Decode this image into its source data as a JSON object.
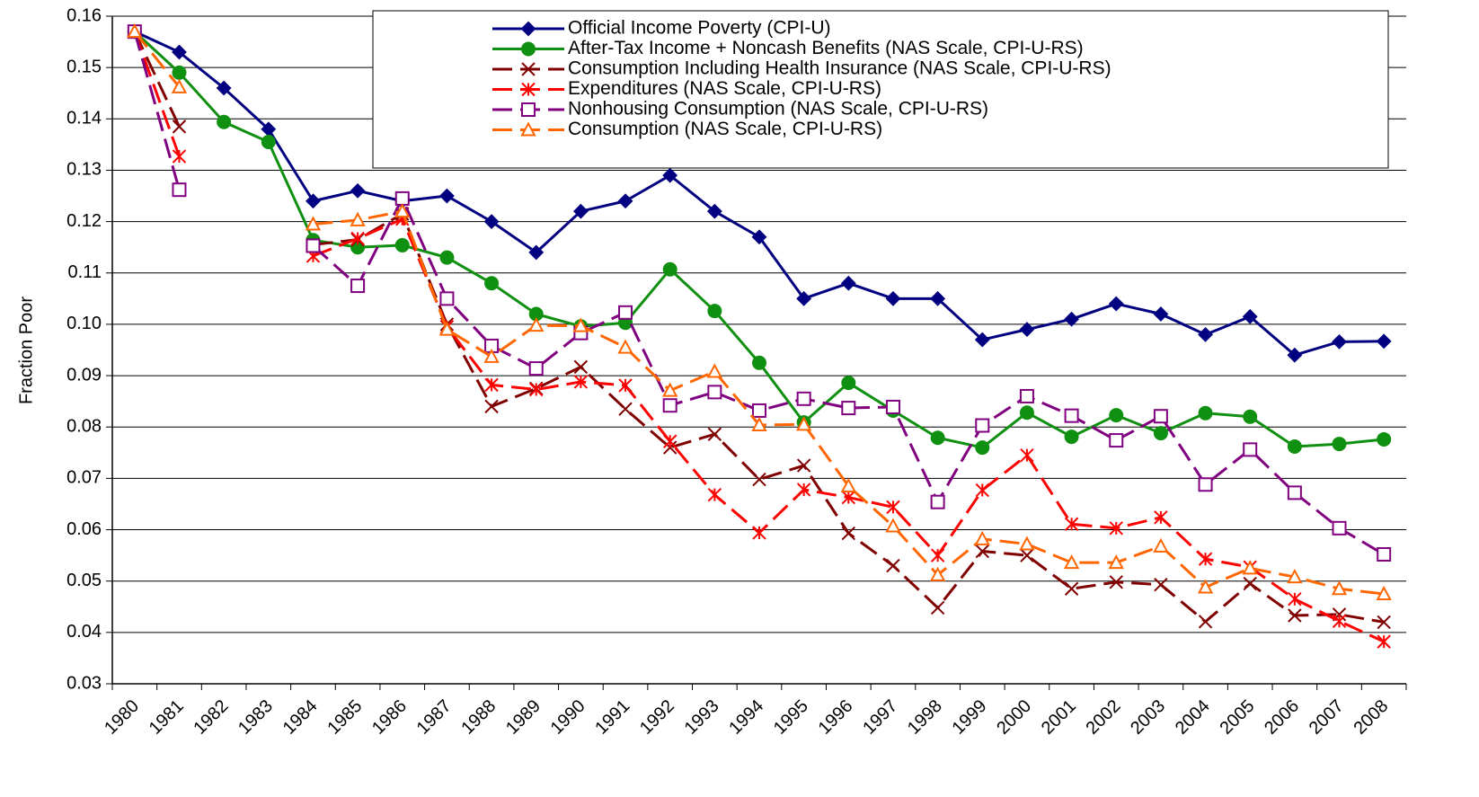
{
  "chart_data": {
    "type": "line",
    "y_label": "Fraction Poor",
    "categories": [
      "1980",
      "1981",
      "1982",
      "1983",
      "1984",
      "1985",
      "1986",
      "1987",
      "1988",
      "1989",
      "1990",
      "1991",
      "1992",
      "1993",
      "1994",
      "1995",
      "1996",
      "1997",
      "1998",
      "1999",
      "2000",
      "2001",
      "2002",
      "2003",
      "2004",
      "2005",
      "2006",
      "2007",
      "2008"
    ],
    "ylim": [
      0.03,
      0.16
    ],
    "yticks": [
      0.03,
      0.04,
      0.05,
      0.06,
      0.07,
      0.08,
      0.09,
      {
        "value": 0.1,
        "label": "0.10"
      },
      0.11,
      0.12,
      0.13,
      0.14,
      0.15,
      0.16
    ],
    "grid": true,
    "legend": "top-right",
    "series": [
      {
        "name": "Official Income Poverty (CPI-U)",
        "color": "#000080",
        "marker": "diamond",
        "dashed": false,
        "values": [
          0.157,
          0.153,
          0.146,
          0.138,
          0.124,
          0.126,
          0.124,
          0.125,
          0.12,
          0.114,
          0.122,
          0.124,
          0.129,
          0.122,
          0.117,
          0.105,
          0.108,
          0.105,
          0.105,
          0.097,
          0.099,
          0.101,
          0.104,
          0.102,
          0.098,
          0.1015,
          0.094,
          0.0966,
          0.0967
        ]
      },
      {
        "name": "After-Tax Income + Noncash Benefits (NAS Scale, CPI-U-RS)",
        "color": "#109010",
        "marker": "circle",
        "dashed": false,
        "values": [
          0.157,
          0.149,
          0.1394,
          0.1355,
          0.1164,
          0.115,
          0.1154,
          0.113,
          0.108,
          0.102,
          0.0996,
          0.1003,
          0.1107,
          0.1026,
          0.0925,
          0.0809,
          0.0886,
          0.0832,
          0.0779,
          0.076,
          0.0828,
          0.0781,
          0.0823,
          0.0788,
          0.0827,
          0.082,
          0.0762,
          0.0767,
          0.0776
        ]
      },
      {
        "name": "Consumption Including Health Insurance (NAS Scale, CPI-U-RS)",
        "color": "#800000",
        "marker": "x",
        "dashed": true,
        "values": [
          0.157,
          0.1385,
          null,
          null,
          0.1155,
          0.1165,
          0.1215,
          0.1,
          0.084,
          0.0875,
          0.0917,
          0.0835,
          0.076,
          0.0786,
          0.0698,
          0.0725,
          0.0593,
          0.053,
          0.0448,
          0.0558,
          0.055,
          0.0485,
          0.0498,
          0.0493,
          0.0421,
          0.0495,
          0.0433,
          0.0435,
          0.042
        ]
      },
      {
        "name": "Expenditures (NAS Scale, CPI-U-RS)",
        "color": "#ff0000",
        "marker": "star",
        "dashed": true,
        "values": [
          0.157,
          0.1327,
          null,
          null,
          0.1133,
          0.1167,
          0.1205,
          0.0995,
          0.0882,
          0.0873,
          0.0888,
          0.0881,
          0.0772,
          0.0668,
          0.0594,
          0.0678,
          0.0663,
          0.0644,
          0.055,
          0.0677,
          0.0745,
          0.0611,
          0.0603,
          0.0624,
          0.0543,
          0.0527,
          0.0465,
          0.0422,
          0.0382
        ]
      },
      {
        "name": "Nonhousing Consumption (NAS Scale, CPI-U-RS)",
        "color": "#800080",
        "marker": "square",
        "dashed": true,
        "values": [
          0.157,
          0.1262,
          null,
          null,
          0.1153,
          0.1075,
          0.1245,
          0.105,
          0.0958,
          0.0914,
          0.0983,
          0.1023,
          0.0842,
          0.0868,
          0.0832,
          0.0855,
          0.0837,
          0.0839,
          0.0654,
          0.0803,
          0.086,
          0.0822,
          0.0774,
          0.0821,
          0.0688,
          0.0756,
          0.0672,
          0.0603,
          0.0552
        ]
      },
      {
        "name": "Consumption (NAS Scale, CPI-U-RS)",
        "color": "#ff6600",
        "marker": "triangle",
        "dashed": true,
        "values": [
          0.157,
          0.1462,
          null,
          null,
          0.1195,
          0.1203,
          0.122,
          0.099,
          0.0937,
          0.0998,
          0.0997,
          0.0955,
          0.0871,
          0.0908,
          0.0804,
          0.0805,
          0.0685,
          0.0607,
          0.0512,
          0.0582,
          0.0572,
          0.0536,
          0.0536,
          0.0568,
          0.0488,
          0.0525,
          0.0508,
          0.0485,
          0.0475
        ]
      }
    ]
  }
}
